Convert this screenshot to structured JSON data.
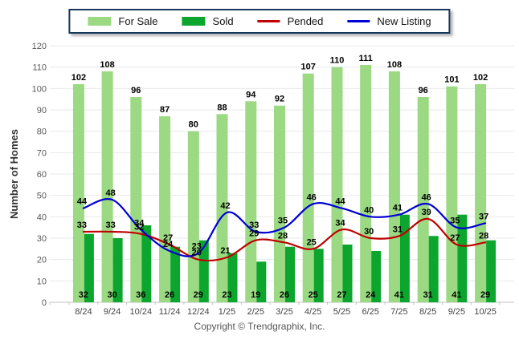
{
  "legend": {
    "items": [
      {
        "label": "For Sale",
        "type": "bar",
        "color": "#9BD983"
      },
      {
        "label": "Sold",
        "type": "bar",
        "color": "#0CA62E"
      },
      {
        "label": "Pended",
        "type": "line",
        "color": "#C00000"
      },
      {
        "label": "New Listing",
        "type": "line",
        "color": "#0000D4"
      }
    ]
  },
  "y_axis": {
    "title": "Number of Homes"
  },
  "footer": {
    "copyright": "Copyright © Trendgraphix, Inc."
  },
  "chart_data": {
    "type": "bar",
    "subtype": "grouped bars with overlaid smooth lines",
    "title": "",
    "xlabel": "",
    "ylabel": "Number of Homes",
    "ylim": [
      0,
      120
    ],
    "y_step": 10,
    "grid": true,
    "legend_position": "top",
    "categories": [
      "8/24",
      "9/24",
      "10/24",
      "11/24",
      "12/24",
      "1/25",
      "2/25",
      "3/25",
      "4/25",
      "5/25",
      "6/25",
      "7/25",
      "8/25",
      "9/25",
      "10/25"
    ],
    "series": [
      {
        "name": "For Sale",
        "type": "bar",
        "color": "#9BD983",
        "values": [
          102,
          108,
          96,
          87,
          80,
          88,
          94,
          92,
          107,
          110,
          111,
          108,
          96,
          101,
          102
        ]
      },
      {
        "name": "Sold",
        "type": "bar",
        "color": "#0CA62E",
        "values": [
          32,
          30,
          36,
          26,
          29,
          23,
          19,
          26,
          25,
          27,
          24,
          41,
          31,
          41,
          29
        ]
      },
      {
        "name": "Pended",
        "type": "line",
        "color": "#C00000",
        "values": [
          33,
          33,
          32,
          27,
          20,
          21,
          29,
          28,
          25,
          34,
          30,
          31,
          39,
          27,
          28
        ]
      },
      {
        "name": "New Listing",
        "type": "line",
        "color": "#0000D4",
        "values": [
          44,
          48,
          34,
          24,
          23,
          42,
          33,
          35,
          46,
          44,
          40,
          41,
          46,
          35,
          37
        ]
      }
    ]
  }
}
